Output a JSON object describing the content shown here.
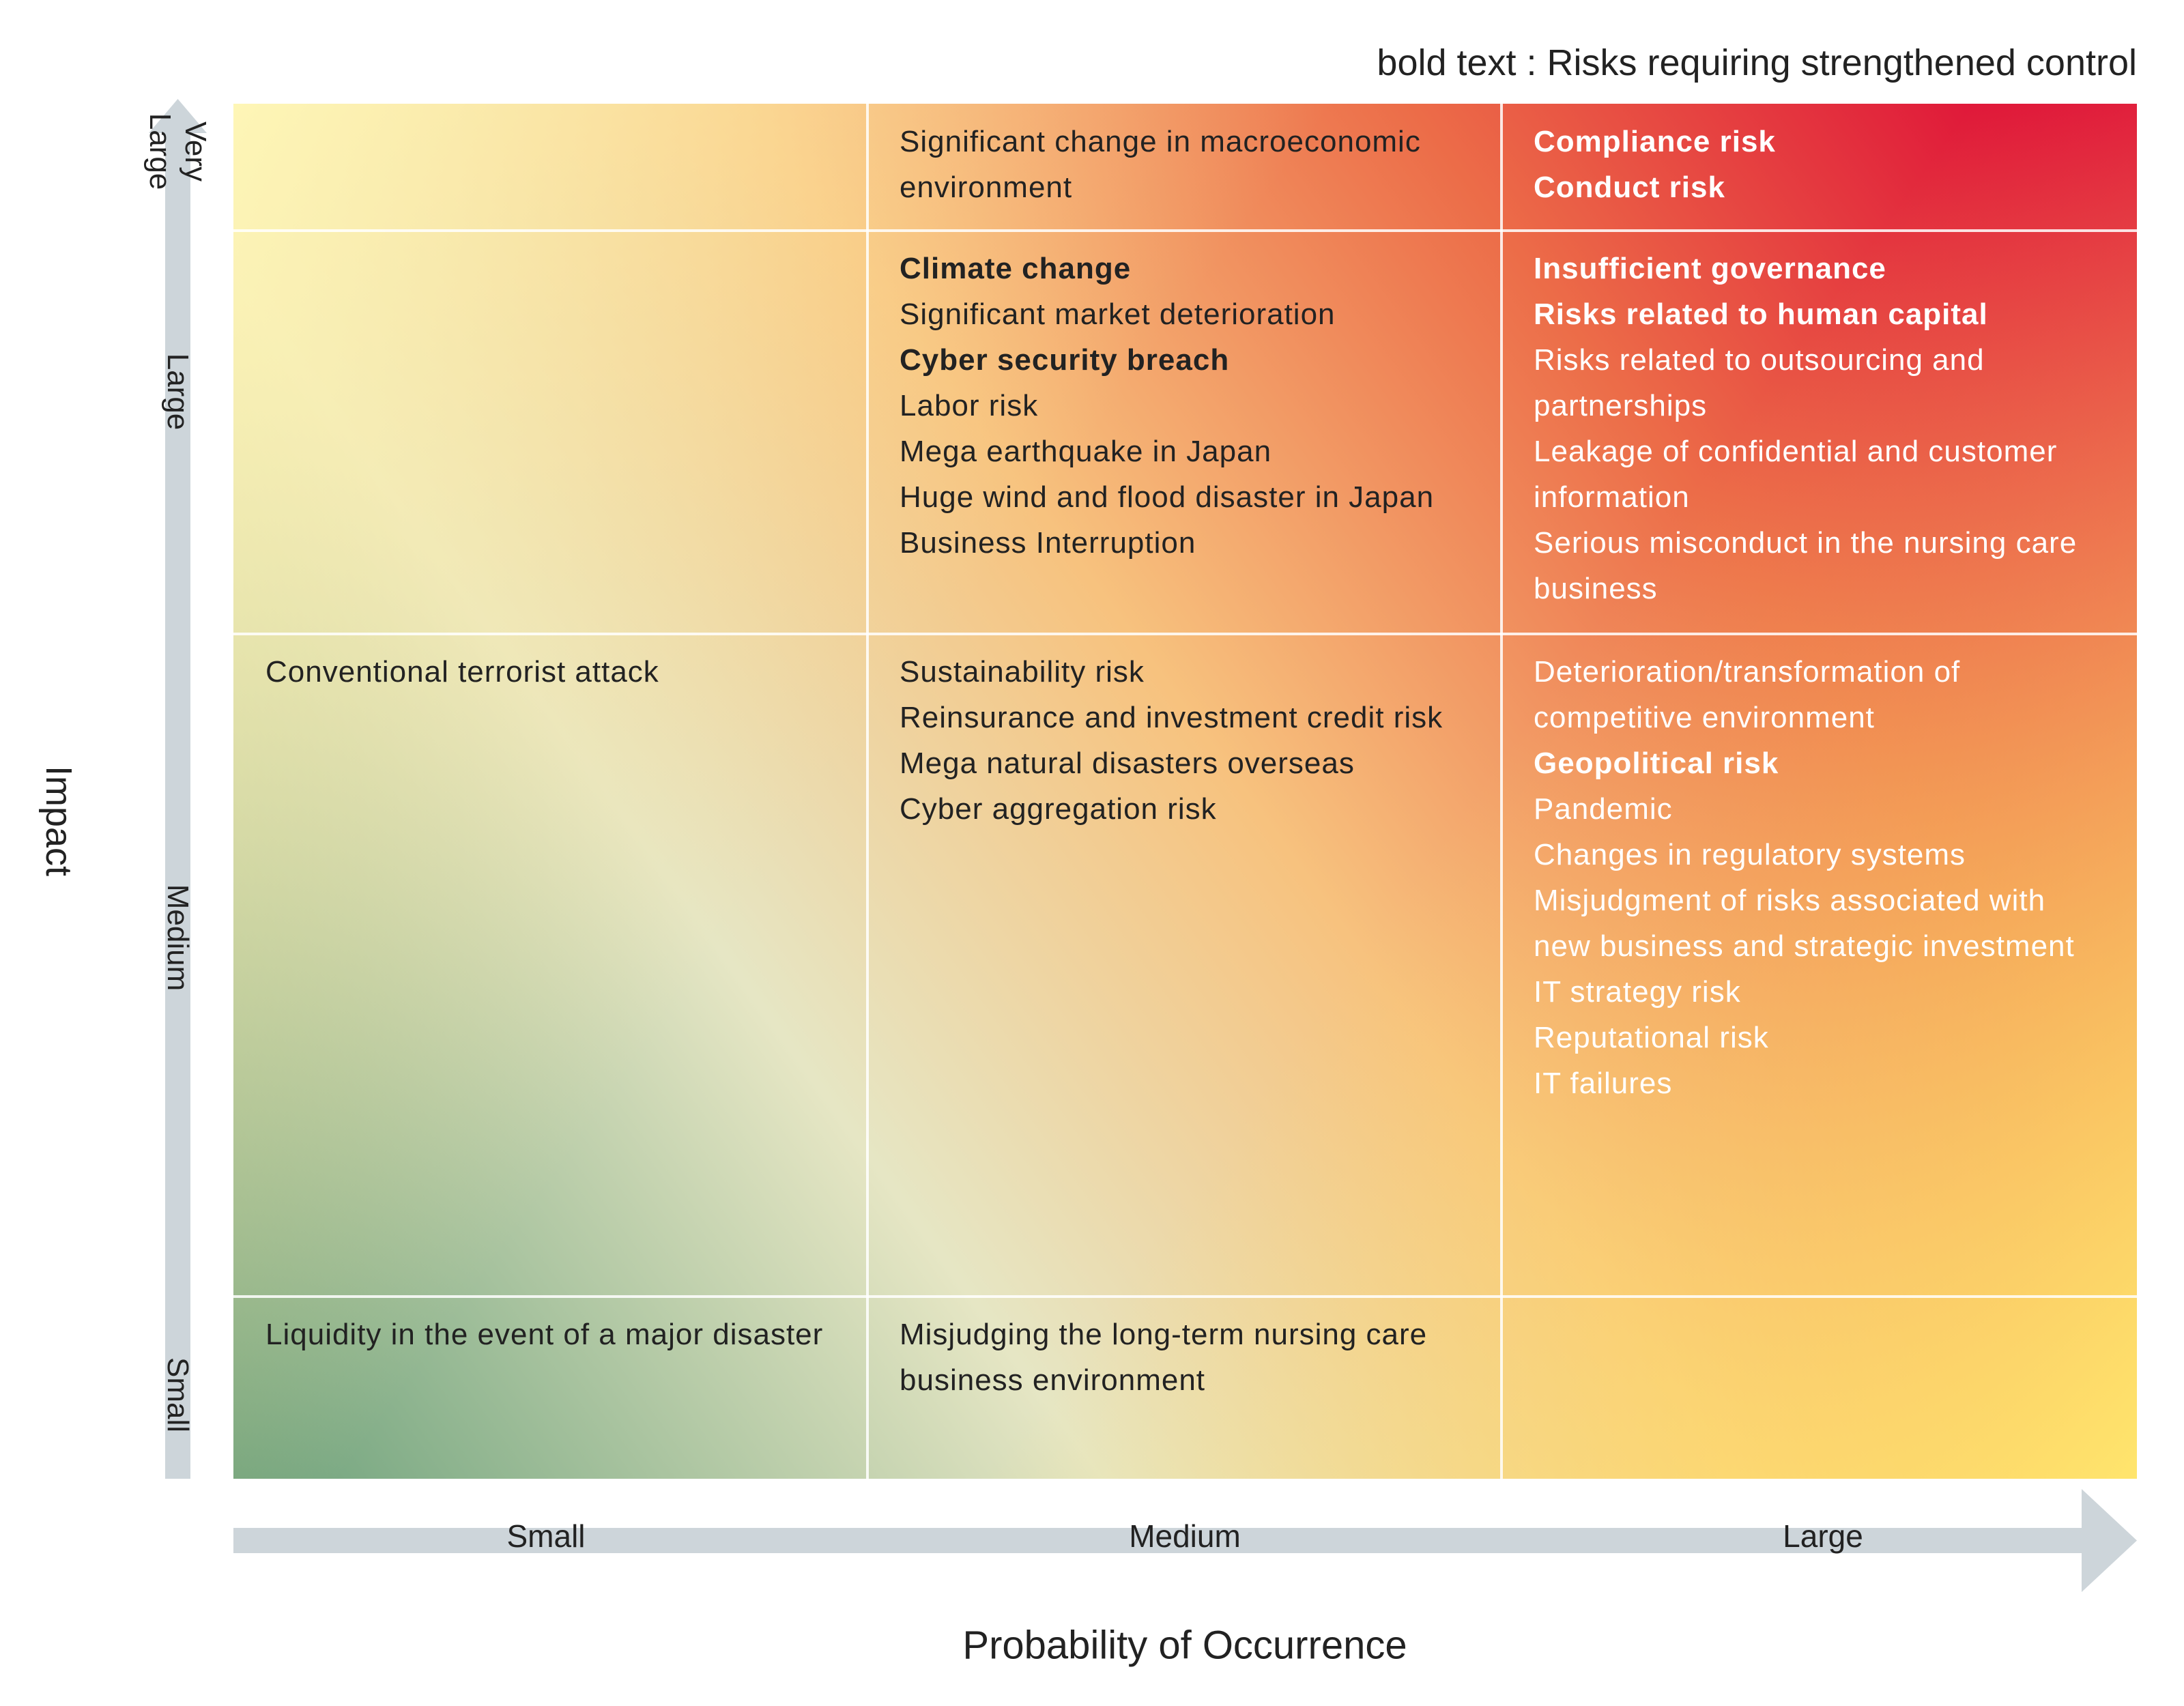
{
  "legend": "bold text : Risks requiring strengthened control",
  "y_axis": {
    "title": "Impact",
    "levels": [
      "Very Large",
      "Large",
      "Medium",
      "Small"
    ]
  },
  "x_axis": {
    "title": "Probability of Occurrence",
    "levels": [
      "Small",
      "Medium",
      "Large"
    ]
  },
  "grid": [
    [
      [],
      [
        {
          "text": "Significant change in macroeconomic environment",
          "bold": false
        }
      ],
      [
        {
          "text": "Compliance risk",
          "bold": true
        },
        {
          "text": "Conduct risk",
          "bold": true
        }
      ]
    ],
    [
      [],
      [
        {
          "text": "Climate change",
          "bold": true
        },
        {
          "text": "Significant market deterioration",
          "bold": false
        },
        {
          "text": "Cyber security breach",
          "bold": true
        },
        {
          "text": "Labor risk",
          "bold": false
        },
        {
          "text": "Mega earthquake in Japan",
          "bold": false
        },
        {
          "text": "Huge wind and flood disaster in Japan",
          "bold": false
        },
        {
          "text": "Business Interruption",
          "bold": false
        }
      ],
      [
        {
          "text": "Insufficient governance",
          "bold": true
        },
        {
          "text": "Risks related to human capital",
          "bold": true
        },
        {
          "text": "Risks related to outsourcing and partnerships",
          "bold": false
        },
        {
          "text": "Leakage of confidential and customer information",
          "bold": false
        },
        {
          "text": "Serious misconduct in the nursing care business",
          "bold": false
        }
      ]
    ],
    [
      [
        {
          "text": "Conventional terrorist attack",
          "bold": false
        }
      ],
      [
        {
          "text": "Sustainability risk",
          "bold": false
        },
        {
          "text": "Reinsurance and investment credit risk",
          "bold": false
        },
        {
          "text": "Mega natural disasters overseas",
          "bold": false
        },
        {
          "text": "Cyber aggregation risk",
          "bold": false
        }
      ],
      [
        {
          "text": "Deterioration/transformation of competitive environment",
          "bold": false
        },
        {
          "text": "Geopolitical risk",
          "bold": true
        },
        {
          "text": "Pandemic",
          "bold": false
        },
        {
          "text": "Changes in regulatory systems",
          "bold": false
        },
        {
          "text": "Misjudgment of risks associated with new business and strategic investment",
          "bold": false
        },
        {
          "text": "IT strategy risk",
          "bold": false
        },
        {
          "text": "Reputational risk",
          "bold": false
        },
        {
          "text": "IT failures",
          "bold": false
        }
      ]
    ],
    [
      [
        {
          "text": "Liquidity in the event of a major disaster",
          "bold": false
        }
      ],
      [
        {
          "text": "Misjudging the long-term nursing care business environment",
          "bold": false
        }
      ],
      []
    ]
  ]
}
